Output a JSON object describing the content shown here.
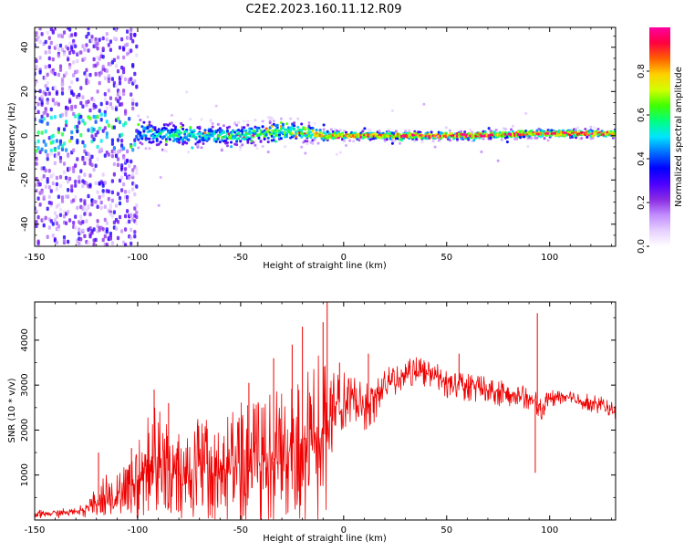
{
  "title": "C2E2.2023.160.11.12.R09",
  "chart_data": [
    {
      "type": "heatmap",
      "panel": "spectrogram",
      "xlabel": "Height of straight line (km)",
      "ylabel": "Frequency (Hz)",
      "xlim": [
        -150,
        132
      ],
      "ylim": [
        -50,
        49
      ],
      "x_ticks": [
        -150,
        -100,
        -50,
        0,
        50,
        100
      ],
      "y_ticks": [
        -40,
        -20,
        0,
        20,
        40
      ],
      "colorbar": {
        "label": "Normalized spectral amplitude",
        "range": [
          0,
          1
        ],
        "ticks": [
          0.0,
          0.2,
          0.4,
          0.6,
          0.8
        ],
        "colormap": [
          "#ffffff",
          "#e6d0ff",
          "#c28cff",
          "#8a2be2",
          "#4b00ff",
          "#0000ff",
          "#0070ff",
          "#00e5ff",
          "#00ff80",
          "#40ff00",
          "#d0ff00",
          "#ffd000",
          "#ff6000",
          "#ff0040",
          "#ff00a0"
        ]
      },
      "band": {
        "x": [
          -150,
          -125,
          -110,
          -90,
          -70,
          -50,
          -30,
          -20,
          -10,
          0,
          30,
          60,
          90,
          110,
          132
        ],
        "center_hz": [
          0,
          2,
          2,
          1,
          0,
          0,
          2,
          2,
          0,
          0,
          0,
          0,
          1,
          1,
          1
        ],
        "halfwidth_hz": [
          50,
          8,
          8,
          7,
          6,
          5,
          6,
          5,
          3,
          2,
          2,
          2,
          2,
          2,
          2
        ],
        "peak_amplitude": [
          0.25,
          0.4,
          0.45,
          0.5,
          0.55,
          0.6,
          0.6,
          0.65,
          0.8,
          0.85,
          0.9,
          0.9,
          0.9,
          0.9,
          0.9
        ]
      }
    },
    {
      "type": "line",
      "panel": "snr",
      "xlabel": "Height of straight line (km)",
      "ylabel": "SNR (10 * v/v)",
      "xlim": [
        -150,
        132
      ],
      "ylim": [
        0,
        4850
      ],
      "x_ticks": [
        -150,
        -100,
        -50,
        0,
        50,
        100
      ],
      "y_ticks": [
        1000,
        2000,
        3000,
        4000
      ],
      "color": "#ff0000",
      "series": [
        {
          "x": [
            -150,
            -140,
            -130,
            -125,
            -120,
            -115,
            -110,
            -105,
            -100,
            -95,
            -90,
            -85,
            -80,
            -75,
            -70,
            -65,
            -60,
            -55,
            -50,
            -45,
            -40,
            -35,
            -30,
            -25,
            -20,
            -15,
            -10,
            -8,
            -5,
            0,
            5,
            10,
            15,
            20,
            25,
            30,
            35,
            40,
            45,
            50,
            55,
            60,
            65,
            70,
            75,
            80,
            85,
            90,
            93,
            95,
            100,
            105,
            110,
            115,
            120,
            125,
            132
          ],
          "y": [
            120,
            150,
            180,
            250,
            400,
            550,
            500,
            650,
            900,
            1300,
            1400,
            1100,
            1000,
            1050,
            1200,
            1000,
            1100,
            1150,
            1200,
            1150,
            1300,
            1300,
            1450,
            1500,
            1400,
            1700,
            1900,
            2000,
            2500,
            2700,
            2700,
            2500,
            2700,
            3000,
            3100,
            3300,
            3300,
            3250,
            3200,
            3000,
            3000,
            2950,
            2950,
            2900,
            2850,
            2800,
            2750,
            2700,
            2650,
            2400,
            2700,
            2750,
            2700,
            2650,
            2600,
            2550,
            2400
          ],
          "variability": [
            80,
            80,
            80,
            150,
            300,
            400,
            400,
            500,
            700,
            900,
            1000,
            900,
            800,
            800,
            900,
            900,
            900,
            1000,
            1100,
            1100,
            1200,
            1200,
            1300,
            1300,
            1300,
            1400,
            1500,
            1500,
            600,
            500,
            400,
            400,
            400,
            300,
            250,
            250,
            250,
            250,
            250,
            250,
            250,
            250,
            250,
            250,
            250,
            200,
            200,
            200,
            200,
            200,
            150,
            150,
            150,
            150,
            150,
            150,
            150
          ],
          "spikes": [
            [
              -119,
              1500
            ],
            [
              -103,
              1600
            ],
            [
              -92,
              2900
            ],
            [
              -85,
              2600
            ],
            [
              -46,
              3050
            ],
            [
              -34,
              3600
            ],
            [
              -25,
              3900
            ],
            [
              -20,
              4300
            ],
            [
              -10,
              4400
            ],
            [
              -8,
              4850
            ],
            [
              -2,
              3500
            ],
            [
              12,
              3700
            ],
            [
              56,
              3700
            ],
            [
              94,
              4600
            ],
            [
              93,
              1050
            ],
            [
              -117,
              180
            ],
            [
              -100,
              230
            ]
          ]
        }
      ]
    }
  ]
}
